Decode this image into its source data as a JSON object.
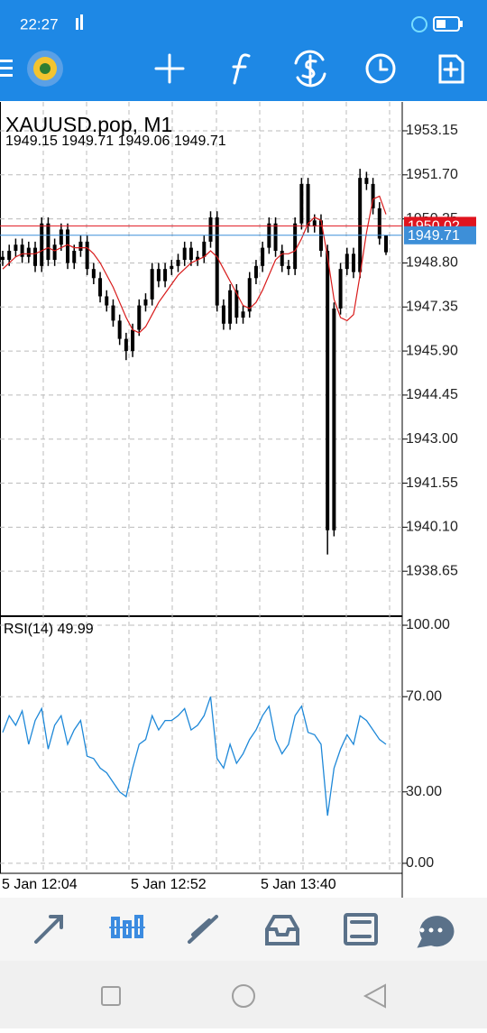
{
  "status_bar": {
    "time": "22:27"
  },
  "chart_data": {
    "type": "candlestick",
    "title": "XAUUSD.pop, M1",
    "ohlc_label": "1949.15 1949.71 1949.06 1949.71",
    "color": "#000000",
    "open": [
      1949.0,
      1948.9,
      1949.2,
      1949.4,
      1949.0,
      1949.3,
      1948.7,
      1950.1,
      1948.9,
      1949.4,
      1949.9,
      1948.8,
      1949.2,
      1949.5,
      1948.6,
      1948.3,
      1947.7,
      1947.4,
      1946.9,
      1946.3,
      1945.9,
      1946.6,
      1947.4,
      1947.6,
      1948.6,
      1948.2,
      1948.6,
      1948.7,
      1948.9,
      1949.3,
      1948.9,
      1949.0,
      1949.5,
      1950.3,
      1947.4,
      1946.8,
      1947.9,
      1947.0,
      1947.2,
      1948.3,
      1948.7,
      1949.3,
      1950.1,
      1949.2,
      1948.7,
      1948.6,
      1950.1,
      1951.4,
      1950.0,
      1950.2,
      1949.2,
      1940.0,
      1947.3,
      1948.6,
      1949.1,
      1948.5,
      1951.6,
      1951.4,
      1950.6,
      1949.15
    ],
    "high": [
      1949.2,
      1949.4,
      1949.6,
      1949.6,
      1949.5,
      1949.5,
      1950.3,
      1950.3,
      1949.6,
      1950.1,
      1950.1,
      1949.4,
      1949.7,
      1949.7,
      1948.8,
      1948.5,
      1947.9,
      1947.6,
      1947.1,
      1946.5,
      1946.8,
      1947.6,
      1947.8,
      1948.8,
      1948.8,
      1948.8,
      1948.9,
      1949.1,
      1949.5,
      1949.5,
      1949.2,
      1949.7,
      1950.5,
      1950.5,
      1947.6,
      1948.1,
      1948.1,
      1947.4,
      1948.5,
      1948.9,
      1949.5,
      1950.3,
      1950.3,
      1949.4,
      1948.9,
      1950.3,
      1951.6,
      1951.6,
      1950.4,
      1950.4,
      1949.4,
      1947.5,
      1948.8,
      1949.3,
      1949.3,
      1951.9,
      1951.8,
      1951.6,
      1950.8,
      1949.71
    ],
    "low": [
      1948.7,
      1948.7,
      1949.0,
      1948.8,
      1948.8,
      1948.5,
      1948.5,
      1948.7,
      1948.7,
      1949.2,
      1948.6,
      1948.6,
      1949.0,
      1948.4,
      1948.1,
      1947.5,
      1947.2,
      1946.7,
      1946.1,
      1945.6,
      1945.7,
      1946.4,
      1947.2,
      1947.4,
      1948.0,
      1948.0,
      1948.4,
      1948.5,
      1948.7,
      1948.7,
      1948.7,
      1948.8,
      1949.3,
      1947.2,
      1946.6,
      1946.6,
      1946.8,
      1946.8,
      1947.0,
      1948.1,
      1948.5,
      1949.1,
      1949.0,
      1948.5,
      1948.4,
      1948.4,
      1949.9,
      1949.8,
      1949.8,
      1949.0,
      1939.2,
      1939.8,
      1947.1,
      1948.4,
      1948.3,
      1948.3,
      1951.2,
      1950.4,
      1949.4,
      1949.06
    ],
    "close": [
      1948.9,
      1949.2,
      1949.4,
      1949.0,
      1949.3,
      1948.7,
      1950.1,
      1948.9,
      1949.4,
      1949.9,
      1948.8,
      1949.2,
      1949.5,
      1948.6,
      1948.3,
      1947.7,
      1947.4,
      1946.9,
      1946.3,
      1945.9,
      1946.6,
      1947.4,
      1947.6,
      1948.6,
      1948.2,
      1948.6,
      1948.7,
      1948.9,
      1949.3,
      1948.9,
      1949.0,
      1949.5,
      1950.3,
      1947.4,
      1946.8,
      1947.9,
      1947.0,
      1947.2,
      1948.3,
      1948.7,
      1949.3,
      1950.1,
      1949.2,
      1948.7,
      1948.6,
      1950.1,
      1951.4,
      1950.0,
      1950.2,
      1949.2,
      1940.0,
      1947.3,
      1948.6,
      1949.1,
      1948.5,
      1951.6,
      1951.4,
      1950.6,
      1949.6,
      1949.71
    ],
    "ma": {
      "color": "#d81b1b",
      "values": [
        1948.6,
        1948.8,
        1949.0,
        1949.1,
        1949.1,
        1949.1,
        1949.2,
        1949.3,
        1949.2,
        1949.3,
        1949.4,
        1949.3,
        1949.3,
        1949.3,
        1949.1,
        1948.8,
        1948.4,
        1948.0,
        1947.5,
        1947.0,
        1946.6,
        1946.5,
        1946.7,
        1947.1,
        1947.5,
        1947.8,
        1948.1,
        1948.4,
        1948.6,
        1948.8,
        1948.9,
        1949.0,
        1949.2,
        1949.0,
        1948.6,
        1948.2,
        1947.8,
        1947.4,
        1947.3,
        1947.5,
        1947.9,
        1948.4,
        1948.9,
        1949.1,
        1949.1,
        1949.2,
        1949.6,
        1950.1,
        1950.3,
        1950.2,
        1949.0,
        1947.6,
        1947.0,
        1946.9,
        1947.1,
        1948.4,
        1949.8,
        1950.9,
        1951.0,
        1950.4
      ]
    },
    "ylim": [
      1937.17,
      1954.1
    ],
    "yticks": [
      {
        "value": 1953.15,
        "label": "1953.15"
      },
      {
        "value": 1951.7,
        "label": "1951.70"
      },
      {
        "value": 1950.25,
        "label": "1950.25"
      },
      {
        "value": 1948.8,
        "label": "1948.80"
      },
      {
        "value": 1947.35,
        "label": "1947.35"
      },
      {
        "value": 1945.9,
        "label": "1945.90"
      },
      {
        "value": 1944.45,
        "label": "1944.45"
      },
      {
        "value": 1943.0,
        "label": "1943.00"
      },
      {
        "value": 1941.55,
        "label": "1941.55"
      },
      {
        "value": 1940.1,
        "label": "1940.10"
      },
      {
        "value": 1938.65,
        "label": "1938.65"
      }
    ],
    "price_lines": [
      {
        "value": 1950.02,
        "color": "#e0141e"
      },
      {
        "value": 1949.71,
        "color": "#3d8fd8"
      }
    ],
    "x_labels": [
      "5 Jan 12:04",
      "5 Jan 12:52",
      "5 Jan 13:40"
    ],
    "grid": true,
    "indicator": {
      "type": "line",
      "title": "RSI(14) 49.99",
      "color": "#1e88d8",
      "values": [
        55,
        62,
        58,
        64,
        50,
        60,
        65,
        48,
        58,
        62,
        50,
        56,
        60,
        45,
        44,
        40,
        38,
        34,
        30,
        28,
        40,
        50,
        52,
        62,
        56,
        60,
        60,
        62,
        65,
        56,
        58,
        62,
        70,
        44,
        40,
        50,
        42,
        46,
        52,
        56,
        62,
        66,
        52,
        46,
        50,
        62,
        66,
        55,
        54,
        50,
        20,
        40,
        48,
        54,
        50,
        62,
        60,
        56,
        52,
        49.99
      ],
      "ylim": [
        -4.2,
        103.8
      ],
      "yticks": [
        {
          "value": 100,
          "label": "100.00"
        },
        {
          "value": 70,
          "label": "70.00"
        },
        {
          "value": 30,
          "label": "30.00"
        },
        {
          "value": 0,
          "label": "0.00"
        }
      ]
    }
  }
}
